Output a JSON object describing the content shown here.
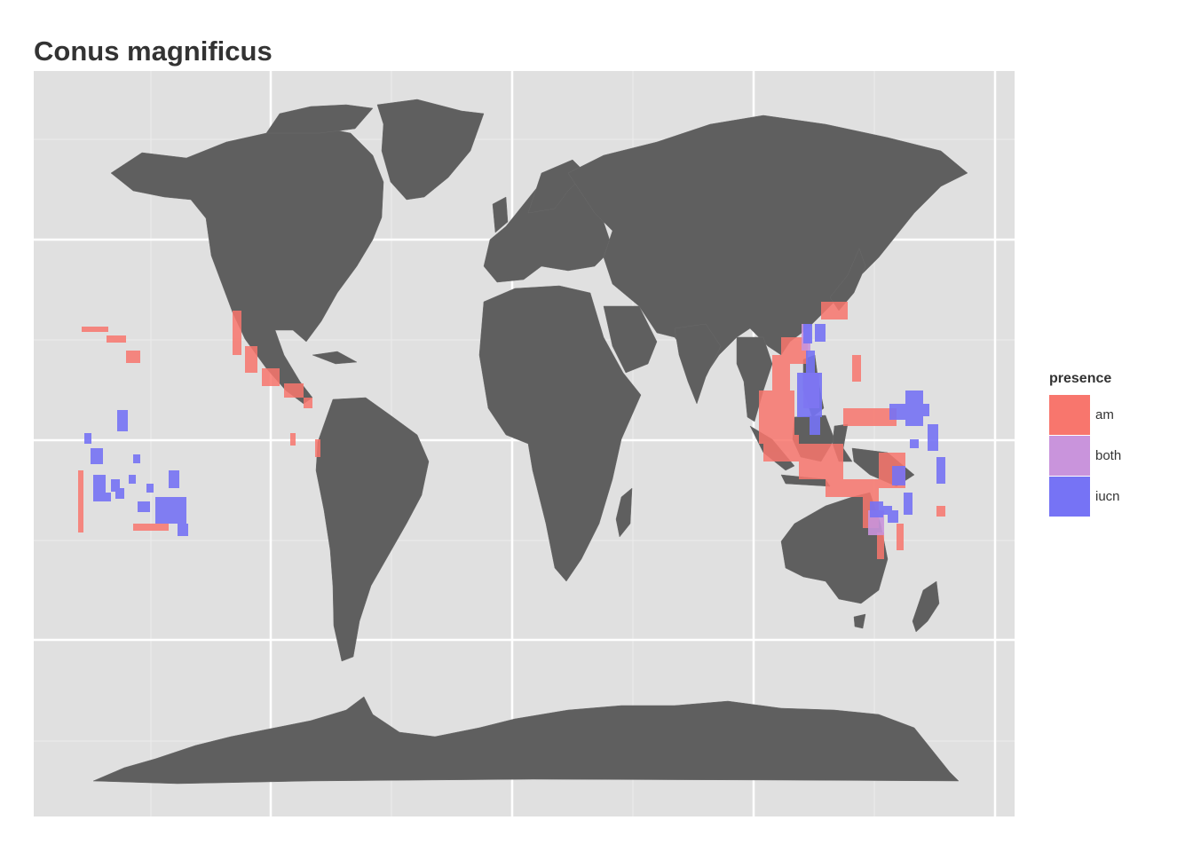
{
  "title": "Conus magnificus",
  "colors": {
    "panel": "#e0e0e0",
    "land": "#5f5f5f",
    "grid_major": "#ffffff",
    "grid_minor": "#ececec"
  },
  "legend": {
    "title": "presence",
    "items": [
      {
        "label": "am",
        "color": "#f8766d"
      },
      {
        "label": "both",
        "color": "#c994dc"
      },
      {
        "label": "iucn",
        "color": "#7673f5"
      }
    ]
  }
}
